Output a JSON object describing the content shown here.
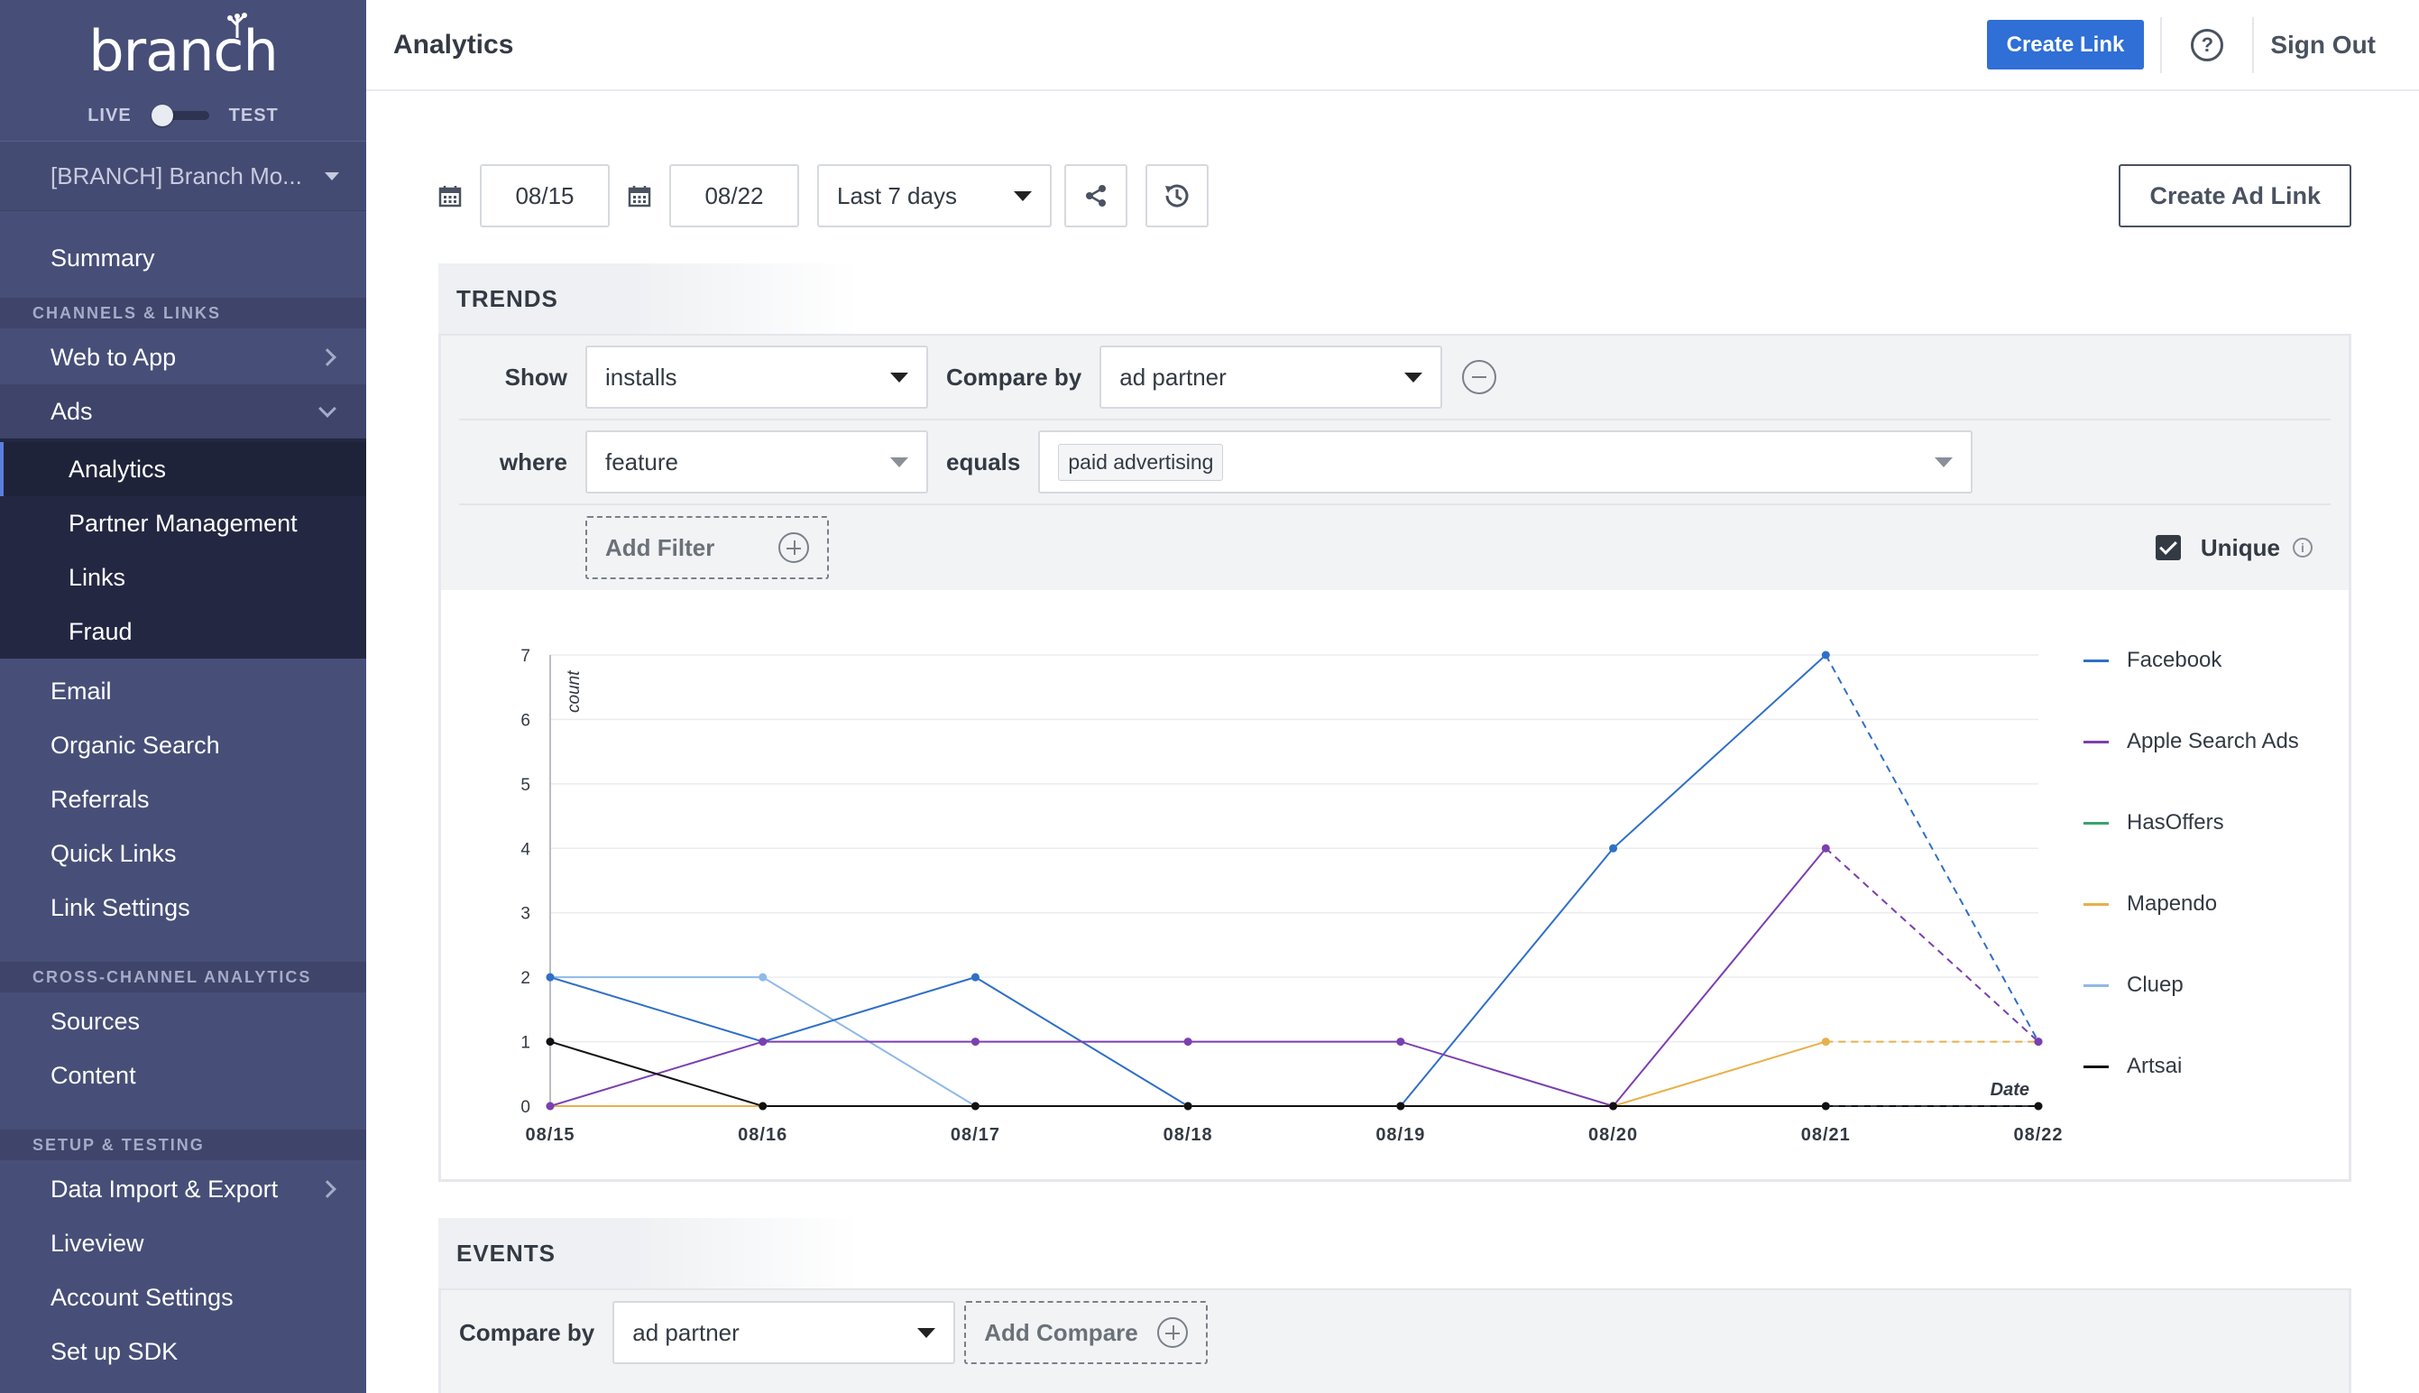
{
  "sidebar": {
    "logo": "branch",
    "mode_live": "LIVE",
    "mode_test": "TEST",
    "org": "[BRANCH] Branch Mo...",
    "summary": "Summary",
    "section_channels": "CHANNELS & LINKS",
    "web_to_app": "Web to App",
    "ads": "Ads",
    "ads_sub": [
      "Analytics",
      "Partner Management",
      "Links",
      "Fraud"
    ],
    "channels_more": [
      "Email",
      "Organic Search",
      "Referrals",
      "Quick Links",
      "Link Settings"
    ],
    "section_cross": "CROSS-CHANNEL ANALYTICS",
    "cross_items": [
      "Sources",
      "Content"
    ],
    "section_setup": "SETUP & TESTING",
    "setup_items": [
      "Data Import & Export",
      "Liveview",
      "Account Settings",
      "Set up SDK"
    ]
  },
  "header": {
    "title": "Analytics",
    "create_link": "Create Link",
    "help": "?",
    "sign_out": "Sign Out"
  },
  "controls": {
    "start_date": "08/15",
    "end_date": "08/22",
    "range": "Last 7 days",
    "create_ad_link": "Create Ad Link"
  },
  "trends": {
    "title": "TRENDS",
    "show_label": "Show",
    "show_value": "installs",
    "compare_label": "Compare by",
    "compare_value": "ad partner",
    "where_label": "where",
    "where_value": "feature",
    "equals_label": "equals",
    "equals_value": "paid advertising",
    "add_filter": "Add Filter",
    "unique_label": "Unique",
    "info": "i"
  },
  "events": {
    "title": "EVENTS",
    "compare_label": "Compare by",
    "compare_value": "ad partner",
    "add_compare": "Add Compare"
  },
  "colors": {
    "accent": "#2f6fd6",
    "sidebar": "#474f78"
  },
  "chart_data": {
    "type": "line",
    "categories": [
      "08/15",
      "08/16",
      "08/17",
      "08/18",
      "08/19",
      "08/20",
      "08/21",
      "08/22"
    ],
    "ylabel": "count",
    "xlabel": "Date",
    "ylim": [
      0,
      7
    ],
    "yticks": [
      "0",
      "1",
      "2",
      "3",
      "4",
      "5",
      "6",
      "7"
    ],
    "dashed_from_index": 6,
    "legend_position": "right",
    "series": [
      {
        "name": "Facebook",
        "color": "#2f6fc7",
        "values": [
          2,
          1,
          2,
          0,
          0,
          4,
          7,
          1
        ]
      },
      {
        "name": "Apple Search Ads",
        "color": "#7b3fb0",
        "values": [
          0,
          1,
          1,
          1,
          1,
          0,
          4,
          1
        ]
      },
      {
        "name": "HasOffers",
        "color": "#3aa36b",
        "values": [
          0,
          0,
          0,
          0,
          0,
          0,
          0,
          0
        ]
      },
      {
        "name": "Mapendo",
        "color": "#e8b04a",
        "values": [
          0,
          0,
          0,
          0,
          0,
          0,
          1,
          1
        ]
      },
      {
        "name": "Cluep",
        "color": "#8fb9e8",
        "values": [
          2,
          2,
          0,
          0,
          0,
          0,
          0,
          0
        ]
      },
      {
        "name": "Artsai",
        "color": "#111111",
        "values": [
          1,
          0,
          0,
          0,
          0,
          0,
          0,
          0
        ]
      }
    ]
  }
}
